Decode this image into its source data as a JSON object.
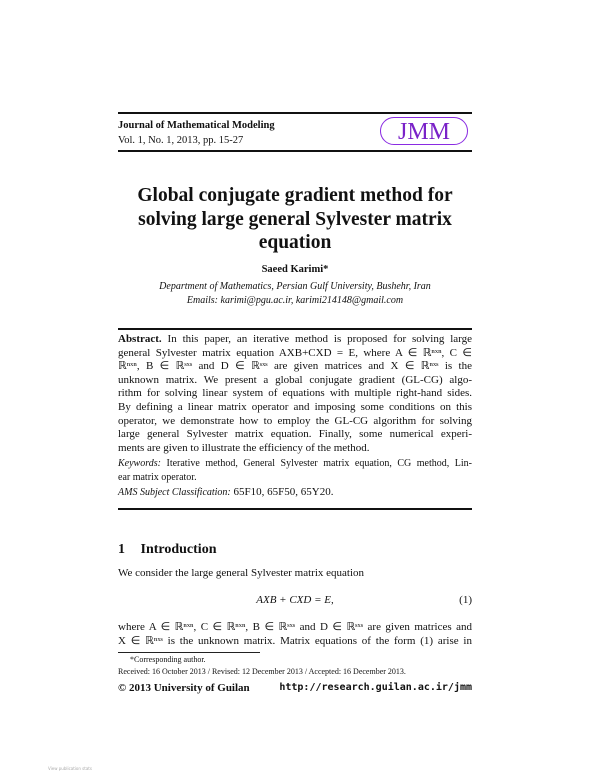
{
  "header": {
    "journal": "Journal of Mathematical Modeling",
    "volume": "Vol. 1, No. 1, 2013, pp. 15-27",
    "logo": "JMM",
    "logo_color": "#7a22c8"
  },
  "title_lines": [
    "Global conjugate gradient method for",
    "solving large general Sylvester matrix",
    "equation"
  ],
  "author": "Saeed Karimi*",
  "affiliation": "Department of Mathematics, Persian Gulf University, Bushehr, Iran",
  "emails": "Emails: karimi@pgu.ac.ir, karimi214148@gmail.com",
  "abstract": {
    "label": "Abstract.",
    "lines": [
      " In this paper, an iterative method is proposed for solving large",
      "general Sylvester matrix equation AXB+CXD = E, where A ∈ ℝⁿˣⁿ, C ∈",
      "ℝⁿˣⁿ, B ∈ ℝˢˣˢ and D ∈ ℝˢˣˢ are given matrices and X ∈ ℝⁿˣˢ is the",
      "unknown matrix. We present a global conjugate gradient (GL-CG) algo-",
      "rithm for solving linear system of equations with multiple right-hand sides.",
      "By defining a linear matrix operator and imposing some conditions on this",
      "operator, we demonstrate how to employ the GL-CG algorithm for solving",
      "large general Sylvester matrix equation. Finally, some numerical experi-",
      "ments are given to illustrate the efficiency of the method."
    ]
  },
  "keywords": {
    "label": "Keywords:",
    "line1": " Iterative method, General Sylvester matrix equation, CG method, Lin-",
    "line2": "ear matrix operator."
  },
  "ams": {
    "label": "AMS Subject Classification:",
    "value": " 65F10, 65F50, 65Y20."
  },
  "section": {
    "number": "1",
    "title": "Introduction"
  },
  "intro_line": "We consider the large general Sylvester matrix equation",
  "equation": {
    "text": "AXB + CXD = E,",
    "number": "(1)"
  },
  "body_lines": [
    "where A ∈ ℝⁿˣⁿ, C ∈ ℝⁿˣⁿ, B ∈ ℝˢˣˢ and D ∈ ℝˢˣˢ are given matrices and",
    "X ∈ ℝⁿˣˢ is the unknown matrix. Matrix equations of the form (1) arise in"
  ],
  "footnote": {
    "corresponding": "*Corresponding author.",
    "dates": "Received: 16 October 2013 / Revised: 12 December 2013 / Accepted: 16 December 2013."
  },
  "footer": {
    "copyright": "© 2013 University of Guilan",
    "url": "http://research.guilan.ac.ir/jmm"
  },
  "watermark": "View publication stats"
}
